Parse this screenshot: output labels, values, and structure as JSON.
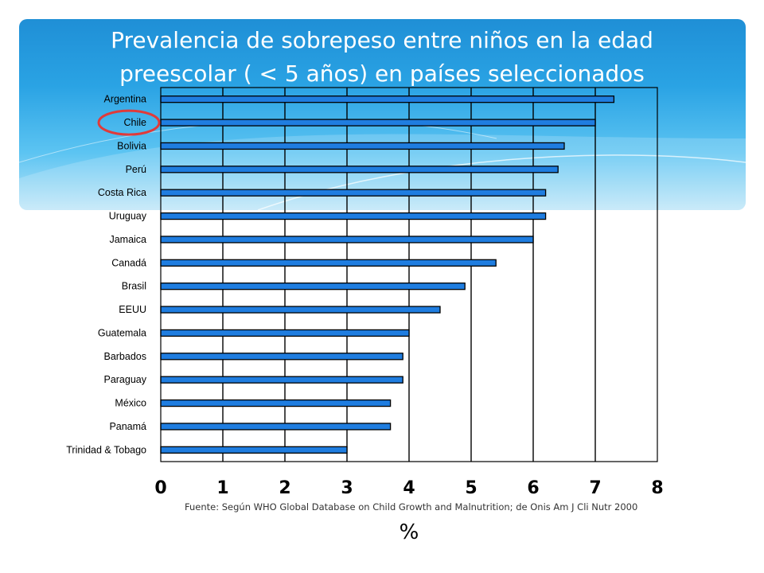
{
  "title": "Prevalencia de sobrepeso entre niños en la edad\npreescolar ( < 5 años) en países seleccionados",
  "source": "Fuente: Según WHO Global Database on Child Growth and Malnutrition; de Onis Am J Cli Nutr 2000",
  "highlight": "Chile",
  "colors": {
    "bar": "#1f7de0",
    "highlight_ring": "#e03a3a",
    "banner": "#2aa3e4"
  },
  "chart_data": {
    "type": "bar",
    "orientation": "horizontal",
    "categories": [
      "Argentina",
      "Chile",
      "Bolivia",
      "Perú",
      "Costa Rica",
      "Uruguay",
      "Jamaica",
      "Canadá",
      "Brasil",
      "EEUU",
      "Guatemala",
      "Barbados",
      "Paraguay",
      "México",
      "Panamá",
      "Trinidad & Tobago"
    ],
    "values": [
      7.3,
      7.0,
      6.5,
      6.4,
      6.2,
      6.2,
      6.0,
      5.4,
      4.9,
      4.5,
      4.0,
      3.9,
      3.9,
      3.7,
      3.7,
      3.0
    ],
    "xlim": [
      0,
      8
    ],
    "xticks": [
      "0",
      "1",
      "2",
      "3",
      "4",
      "5",
      "6",
      "7",
      "8"
    ],
    "xlabel": "%",
    "ylabel": "",
    "grid": true
  }
}
